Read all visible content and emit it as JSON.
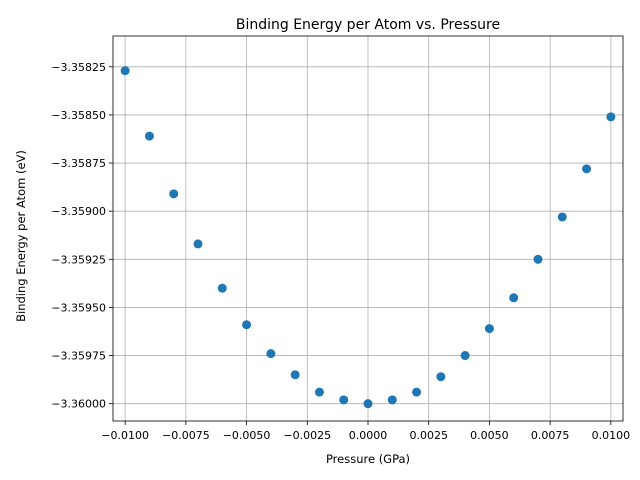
{
  "chart_data": {
    "type": "scatter",
    "title": "Binding Energy per Atom vs. Pressure",
    "xlabel": "Pressure (GPa)",
    "ylabel": "Binding Energy per Atom (eV)",
    "xlim": [
      -0.0105,
      0.0105
    ],
    "ylim": [
      -3.36009,
      -3.35809
    ],
    "xticks": [
      -0.01,
      -0.0075,
      -0.005,
      -0.0025,
      0.0,
      0.0025,
      0.005,
      0.0075,
      0.01
    ],
    "xtick_labels": [
      "−0.0100",
      "−0.0075",
      "−0.0050",
      "−0.0025",
      "0.0000",
      "0.0025",
      "0.0050",
      "0.0075",
      "0.0100"
    ],
    "yticks": [
      -3.36,
      -3.35975,
      -3.3595,
      -3.35925,
      -3.359,
      -3.35875,
      -3.3585,
      -3.35825
    ],
    "ytick_labels": [
      "−3.36000",
      "−3.35975",
      "−3.35950",
      "−3.35925",
      "−3.35900",
      "−3.35875",
      "−3.35850",
      "−3.35825"
    ],
    "grid": true,
    "marker_color": "#1f77b4",
    "x": [
      -0.01,
      -0.009,
      -0.008,
      -0.007,
      -0.006,
      -0.005,
      -0.004,
      -0.003,
      -0.002,
      -0.001,
      0.0,
      0.001,
      0.002,
      0.003,
      0.004,
      0.005,
      0.006,
      0.007,
      0.008,
      0.009,
      0.01
    ],
    "y": [
      -3.35827,
      -3.35861,
      -3.35891,
      -3.35917,
      -3.3594,
      -3.35959,
      -3.35974,
      -3.35985,
      -3.35994,
      -3.35998,
      -3.36,
      -3.35998,
      -3.35994,
      -3.35986,
      -3.35975,
      -3.35961,
      -3.35945,
      -3.35925,
      -3.35903,
      -3.35878,
      -3.35851
    ]
  }
}
